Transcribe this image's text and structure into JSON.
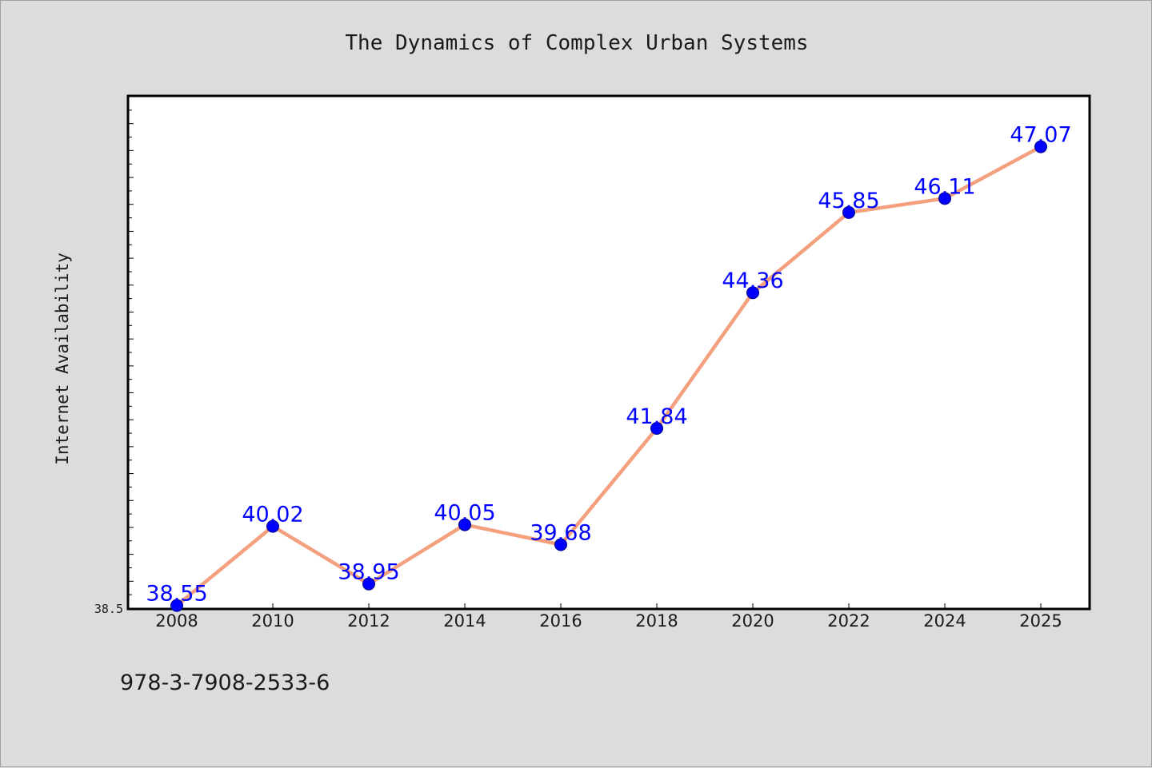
{
  "chart_data": {
    "type": "line",
    "title": "The Dynamics of Complex Urban Systems",
    "xlabel": "",
    "ylabel": "Internet Availability",
    "categories": [
      "2008",
      "2010",
      "2012",
      "2014",
      "2016",
      "2018",
      "2020",
      "2022",
      "2024",
      "2025"
    ],
    "series": [
      {
        "values": [
          38.55,
          40.02,
          38.95,
          40.05,
          39.68,
          41.84,
          44.36,
          45.85,
          46.11,
          47.07
        ],
        "data_labels": [
          "38.55",
          "40.02",
          "38.95",
          "40.05",
          "39.68",
          "41.84",
          "44.36",
          "45.85",
          "46.11",
          "47.07"
        ]
      }
    ],
    "ylim": [
      38.5,
      48.0
    ],
    "y_tick_labels": [
      "38.5"
    ],
    "grid": false,
    "legend": "none",
    "colors": {
      "line": "#f4a07e",
      "marker": "#0000ff",
      "data_label": "#0000ff",
      "background": "#dcdcdc",
      "plot_background": "#ffffff"
    }
  },
  "footer": {
    "isbn": "978-3-7908-2533-6"
  }
}
